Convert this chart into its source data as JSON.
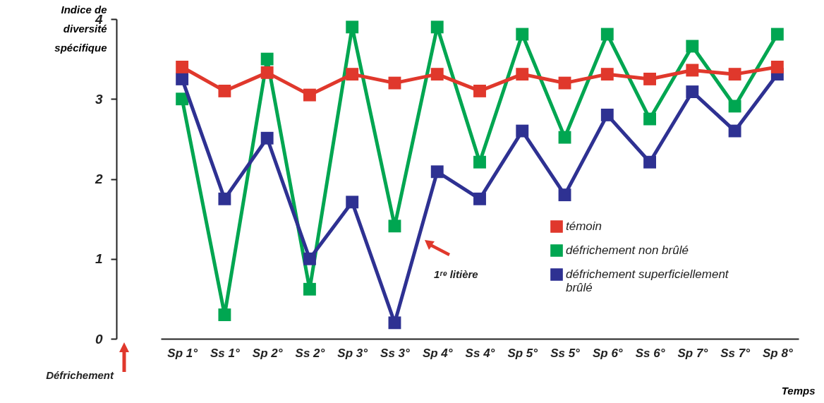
{
  "chart_data": {
    "type": "line",
    "ylabel": "Indice de diversité spécifique",
    "xlabel": "Temps",
    "annotations": [
      "1ʳᵉ litière",
      "Défrichement"
    ],
    "categories": [
      "Sp 1°",
      "Ss 1°",
      "Sp 2°",
      "Ss 2°",
      "Sp 3°",
      "Ss 3°",
      "Sp 4°",
      "Ss 4°",
      "Sp 5°",
      "Ss 5°",
      "Sp 6°",
      "Ss 6°",
      "Sp 7°",
      "Ss 7°",
      "Sp 8°"
    ],
    "series": [
      {
        "name": "témoin",
        "color": "#e0382c",
        "values": [
          3.4,
          3.1,
          3.33,
          3.05,
          3.31,
          3.2,
          3.31,
          3.1,
          3.31,
          3.2,
          3.31,
          3.25,
          3.36,
          3.31,
          3.4
        ]
      },
      {
        "name": "défrichement non brûlé",
        "color": "#00a651",
        "values": [
          3.0,
          0.3,
          3.5,
          0.62,
          3.9,
          1.41,
          3.9,
          2.21,
          3.81,
          2.52,
          3.81,
          2.75,
          3.66,
          2.91,
          3.81
        ]
      },
      {
        "name": "défrichement superficiellement brûlé",
        "color": "#2e3192",
        "values": [
          3.25,
          1.75,
          2.51,
          1.0,
          1.71,
          0.2,
          2.09,
          1.75,
          2.6,
          1.8,
          2.8,
          2.21,
          3.09,
          2.6,
          3.31
        ]
      }
    ],
    "ylim": [
      0,
      4
    ],
    "yticks": [
      0,
      1,
      2,
      3,
      4
    ],
    "legend": "right",
    "marker": "square",
    "line_style": "solid"
  }
}
